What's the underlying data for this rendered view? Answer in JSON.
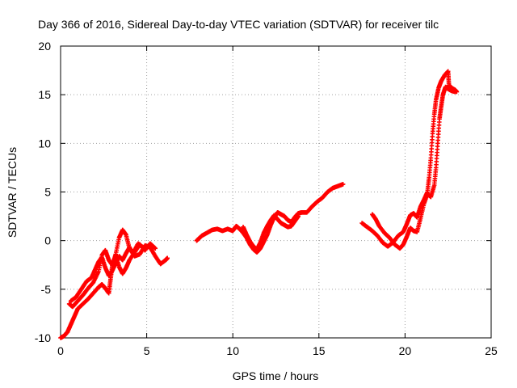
{
  "chart_data": {
    "type": "scatter",
    "title": "Day 366 of 2016, Sidereal Day-to-day VTEC variation (SDTVAR) for receiver tilc",
    "xlabel": "GPS time / hours",
    "ylabel": "SDTVAR / TECUs",
    "xlim": [
      0,
      25
    ],
    "ylim": [
      -10,
      20
    ],
    "x_ticks": [
      0,
      5,
      10,
      15,
      20,
      25
    ],
    "y_ticks": [
      -10,
      -5,
      0,
      5,
      10,
      15,
      20
    ],
    "x_tick_labels": [
      "0",
      "5",
      "10",
      "15",
      "20",
      "25"
    ],
    "y_tick_labels": [
      "-10",
      "-5",
      "0",
      "5",
      "10",
      "15",
      "20"
    ],
    "grid": true,
    "marker": "+",
    "color": "#ff0000",
    "series": [
      {
        "segments": [
          [
            [
              0.0,
              -10.0
            ],
            [
              0.2,
              -9.8
            ],
            [
              0.4,
              -9.4
            ],
            [
              0.6,
              -8.6
            ],
            [
              0.8,
              -7.8
            ],
            [
              1.0,
              -7.0
            ],
            [
              1.3,
              -6.5
            ],
            [
              1.6,
              -6.0
            ],
            [
              1.9,
              -5.4
            ],
            [
              2.2,
              -4.8
            ],
            [
              2.4,
              -4.5
            ],
            [
              2.6,
              -4.9
            ],
            [
              2.8,
              -5.4
            ],
            [
              2.9,
              -4.0
            ],
            [
              3.0,
              -2.6
            ],
            [
              3.2,
              -1.4
            ],
            [
              3.4,
              0.3
            ],
            [
              3.6,
              1.1
            ],
            [
              3.8,
              0.6
            ],
            [
              4.0,
              -0.8
            ],
            [
              4.3,
              -1.6
            ],
            [
              4.6,
              -1.4
            ],
            [
              4.9,
              -0.5
            ],
            [
              5.2,
              -0.7
            ],
            [
              5.5,
              -1.6
            ],
            [
              5.8,
              -2.4
            ],
            [
              6.1,
              -2.0
            ],
            [
              6.2,
              -1.8
            ]
          ],
          [
            [
              0.5,
              -6.5
            ],
            [
              0.7,
              -6.8
            ],
            [
              1.0,
              -6.2
            ],
            [
              1.3,
              -5.6
            ],
            [
              1.6,
              -4.9
            ],
            [
              1.9,
              -4.3
            ],
            [
              2.2,
              -3.2
            ],
            [
              2.4,
              -1.5
            ],
            [
              2.6,
              -1.0
            ],
            [
              2.8,
              -2.0
            ],
            [
              3.0,
              -2.5
            ],
            [
              3.2,
              -1.5
            ],
            [
              3.4,
              -2.7
            ],
            [
              3.6,
              -3.4
            ],
            [
              3.8,
              -2.8
            ],
            [
              4.0,
              -2.0
            ],
            [
              4.3,
              -1.2
            ],
            [
              4.6,
              -0.4
            ],
            [
              4.9,
              -1.0
            ],
            [
              5.2,
              -0.3
            ],
            [
              5.5,
              -0.8
            ]
          ],
          [
            [
              0.6,
              -6.2
            ],
            [
              0.9,
              -5.8
            ],
            [
              1.2,
              -5.0
            ],
            [
              1.5,
              -4.2
            ],
            [
              1.8,
              -3.8
            ],
            [
              2.0,
              -3.0
            ],
            [
              2.2,
              -2.2
            ],
            [
              2.4,
              -1.7
            ],
            [
              2.6,
              -2.8
            ],
            [
              2.8,
              -3.6
            ],
            [
              3.0,
              -3.1
            ],
            [
              3.2,
              -2.3
            ],
            [
              3.4,
              -1.6
            ],
            [
              3.6,
              -2.0
            ],
            [
              3.8,
              -1.3
            ],
            [
              4.0,
              -0.7
            ],
            [
              4.2,
              -1.3
            ],
            [
              4.5,
              -0.3
            ],
            [
              4.8,
              -0.7
            ]
          ],
          [
            [
              7.9,
              0.0
            ],
            [
              8.2,
              0.5
            ],
            [
              8.5,
              0.8
            ],
            [
              8.8,
              1.1
            ],
            [
              9.1,
              1.2
            ],
            [
              9.4,
              1.0
            ],
            [
              9.7,
              1.2
            ],
            [
              10.0,
              1.0
            ],
            [
              10.2,
              1.5
            ],
            [
              10.4,
              1.2
            ],
            [
              10.6,
              0.8
            ],
            [
              10.8,
              0.3
            ],
            [
              11.0,
              -0.4
            ],
            [
              11.2,
              -0.9
            ],
            [
              11.4,
              -1.2
            ],
            [
              11.6,
              -0.8
            ],
            [
              11.8,
              -0.1
            ],
            [
              12.0,
              0.6
            ],
            [
              12.2,
              1.6
            ],
            [
              12.4,
              2.4
            ],
            [
              12.6,
              2.9
            ],
            [
              12.8,
              2.7
            ],
            [
              13.0,
              2.5
            ],
            [
              13.2,
              2.1
            ],
            [
              13.4,
              1.9
            ],
            [
              13.6,
              2.4
            ],
            [
              13.8,
              2.8
            ],
            [
              14.0,
              2.9
            ],
            [
              14.3,
              2.9
            ],
            [
              14.6,
              3.5
            ],
            [
              14.9,
              4.0
            ],
            [
              15.2,
              4.4
            ],
            [
              15.5,
              5.0
            ],
            [
              15.8,
              5.4
            ],
            [
              16.1,
              5.6
            ],
            [
              16.4,
              5.8
            ]
          ],
          [
            [
              10.6,
              1.4
            ],
            [
              10.8,
              0.6
            ],
            [
              11.0,
              -0.1
            ],
            [
              11.2,
              -0.6
            ],
            [
              11.4,
              -0.9
            ],
            [
              11.6,
              -0.2
            ],
            [
              11.8,
              0.8
            ],
            [
              12.0,
              1.5
            ],
            [
              12.2,
              2.1
            ],
            [
              12.4,
              2.6
            ],
            [
              12.6,
              2.2
            ],
            [
              12.8,
              1.8
            ],
            [
              13.0,
              1.6
            ],
            [
              13.2,
              1.4
            ],
            [
              13.4,
              1.5
            ],
            [
              13.6,
              2.0
            ],
            [
              13.8,
              2.5
            ]
          ],
          [
            [
              17.5,
              1.8
            ],
            [
              17.8,
              1.4
            ],
            [
              18.1,
              1.0
            ],
            [
              18.4,
              0.5
            ],
            [
              18.7,
              -0.2
            ],
            [
              19.0,
              -0.6
            ],
            [
              19.3,
              -0.2
            ],
            [
              19.6,
              0.5
            ],
            [
              19.9,
              0.9
            ],
            [
              20.1,
              1.7
            ],
            [
              20.3,
              2.6
            ],
            [
              20.5,
              2.8
            ],
            [
              20.7,
              2.4
            ],
            [
              20.9,
              3.5
            ],
            [
              21.1,
              4.2
            ],
            [
              21.3,
              5.0
            ],
            [
              21.4,
              6.5
            ],
            [
              21.5,
              8.5
            ],
            [
              21.6,
              11.0
            ],
            [
              21.7,
              13.0
            ],
            [
              21.8,
              14.5
            ],
            [
              21.95,
              15.7
            ],
            [
              22.1,
              16.4
            ],
            [
              22.3,
              17.0
            ],
            [
              22.5,
              17.4
            ],
            [
              22.55,
              16.0
            ],
            [
              22.7,
              15.7
            ],
            [
              22.9,
              15.5
            ],
            [
              23.0,
              15.3
            ]
          ],
          [
            [
              18.1,
              2.7
            ],
            [
              18.3,
              2.2
            ],
            [
              18.5,
              1.5
            ],
            [
              18.8,
              0.8
            ],
            [
              19.1,
              0.3
            ],
            [
              19.4,
              -0.4
            ],
            [
              19.7,
              -0.8
            ],
            [
              19.9,
              -0.4
            ],
            [
              20.1,
              0.4
            ],
            [
              20.3,
              1.3
            ],
            [
              20.5,
              1.0
            ],
            [
              20.7,
              0.9
            ],
            [
              20.9,
              2.3
            ],
            [
              21.1,
              3.8
            ],
            [
              21.3,
              4.8
            ],
            [
              21.5,
              4.5
            ],
            [
              21.7,
              5.7
            ],
            [
              21.8,
              7.5
            ],
            [
              21.9,
              10.0
            ],
            [
              22.0,
              12.5
            ],
            [
              22.1,
              13.8
            ],
            [
              22.2,
              15.0
            ],
            [
              22.35,
              15.8
            ],
            [
              22.5,
              15.6
            ],
            [
              22.7,
              15.4
            ],
            [
              22.9,
              15.3
            ]
          ]
        ]
      }
    ]
  }
}
